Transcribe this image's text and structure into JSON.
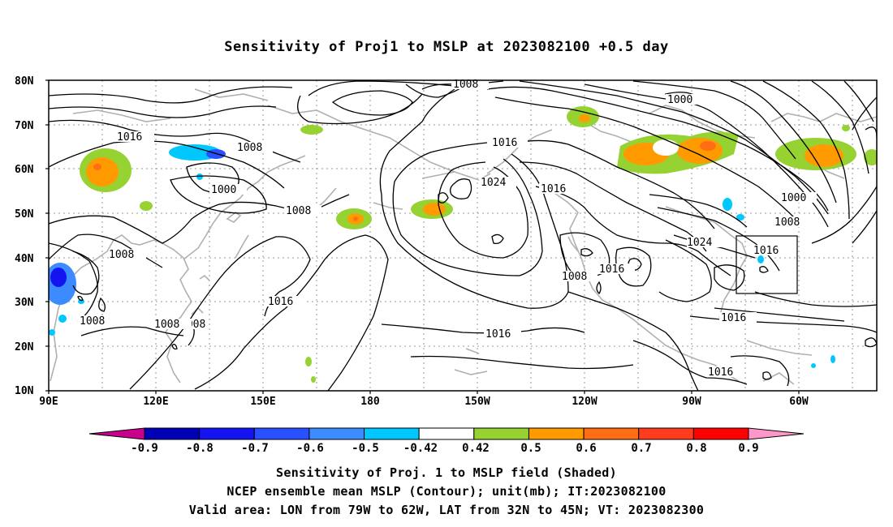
{
  "title": "Sensitivity of Proj1 to MSLP at 2023082100 +0.5 day",
  "lat_labels": [
    "80N",
    "70N",
    "60N",
    "50N",
    "40N",
    "30N",
    "20N",
    "10N"
  ],
  "lon_labels": [
    "90E",
    "120E",
    "150E",
    "180",
    "150W",
    "120W",
    "90W",
    "60W"
  ],
  "contour_labels": [
    "1008",
    "1000",
    "1016",
    "1008",
    "1000",
    "1008",
    "1016",
    "1008",
    "1016",
    "1008",
    "1008",
    "1008",
    "1016",
    "1024",
    "1016",
    "1024",
    "1000",
    "1008",
    "1016",
    "1016",
    "1008",
    "1016",
    "1016",
    "1008"
  ],
  "colorbar": {
    "labels": [
      "-0.9",
      "-0.8",
      "-0.7",
      "-0.6",
      "-0.5",
      "-0.42",
      "0.42",
      "0.5",
      "0.6",
      "0.7",
      "0.8",
      "0.9"
    ],
    "colors": [
      "#0000b4",
      "#1414f0",
      "#2850ff",
      "#3c8cff",
      "#00c8ff",
      "#ffffff",
      "#96d232",
      "#ff9b00",
      "#ff6e14",
      "#ff3c1e",
      "#ff0000"
    ],
    "low_cap_color": "#c8008c",
    "high_cap_color": "#ff96c8"
  },
  "captions": [
    "Sensitivity of Proj. 1 to MSLP field (Shaded)",
    "NCEP ensemble mean MSLP (Contour); unit(mb); IT:2023082100",
    "Valid area: LON from 79W to 62W, LAT from 32N to 45N; VT: 2023082300"
  ]
}
